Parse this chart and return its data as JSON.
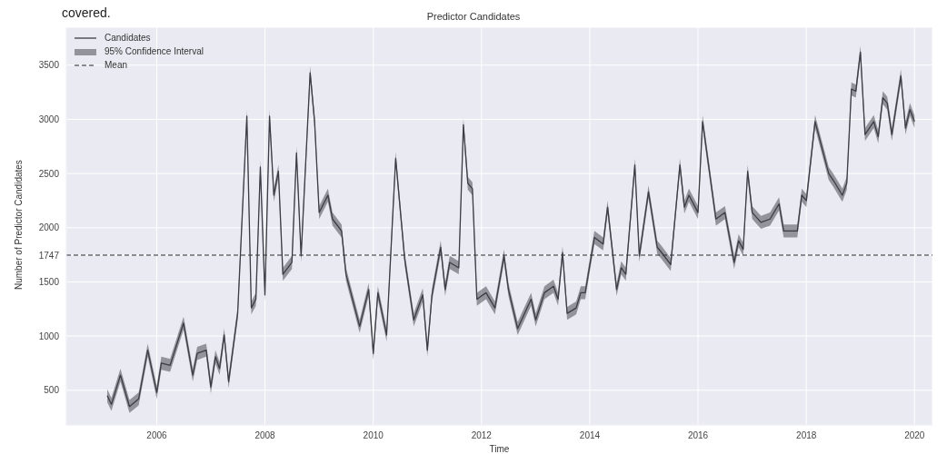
{
  "chart_data": {
    "type": "line",
    "title": "Predictor Candidates",
    "xlabel": "Time",
    "ylabel": "Number of Predictor Candidates",
    "annotations": [
      "covered.",
      "95% Confidence Interval"
    ],
    "x": [
      "2005-02",
      "2005-03",
      "2005-05",
      "2005-07",
      "2005-09",
      "2005-11",
      "2006-01",
      "2006-02",
      "2006-04",
      "2006-07",
      "2006-09",
      "2006-10",
      "2006-12",
      "2007-01",
      "2007-02",
      "2007-03",
      "2007-04",
      "2007-05",
      "2007-07",
      "2007-09",
      "2007-10",
      "2007-11",
      "2007-12",
      "2008-01",
      "2008-02",
      "2008-03",
      "2008-04",
      "2008-05",
      "2008-07",
      "2008-08",
      "2008-09",
      "2008-11",
      "2008-12",
      "2009-01",
      "2009-03",
      "2009-04",
      "2009-06",
      "2009-07",
      "2009-10",
      "2009-12",
      "2010-01",
      "2010-02",
      "2010-04",
      "2010-06",
      "2010-08",
      "2010-10",
      "2010-12",
      "2011-01",
      "2011-02",
      "2011-04",
      "2011-05",
      "2011-06",
      "2011-08",
      "2011-09",
      "2011-10",
      "2011-11",
      "2011-12",
      "2012-02",
      "2012-04",
      "2012-06",
      "2012-07",
      "2012-09",
      "2012-12",
      "2013-01",
      "2013-03",
      "2013-05",
      "2013-06",
      "2013-07",
      "2013-08",
      "2013-10",
      "2013-11",
      "2013-12",
      "2014-02",
      "2014-04",
      "2014-05",
      "2014-07",
      "2014-08",
      "2014-09",
      "2014-11",
      "2014-12",
      "2015-02",
      "2015-04",
      "2015-05",
      "2015-07",
      "2015-09",
      "2015-10",
      "2015-11",
      "2016-01",
      "2016-02",
      "2016-05",
      "2016-07",
      "2016-09",
      "2016-10",
      "2016-11",
      "2016-12",
      "2017-01",
      "2017-03",
      "2017-05",
      "2017-07",
      "2017-08",
      "2017-11",
      "2017-12",
      "2018-01",
      "2018-03",
      "2018-06",
      "2018-07",
      "2018-09",
      "2018-10",
      "2018-11",
      "2018-12",
      "2019-01",
      "2019-02",
      "2019-04",
      "2019-05",
      "2019-06",
      "2019-07",
      "2019-08",
      "2019-10",
      "2019-11",
      "2019-12",
      "2020-01"
    ],
    "series": [
      {
        "name": "Candidates",
        "color": "#3c3c44",
        "values": [
          450,
          370,
          640,
          350,
          420,
          870,
          480,
          750,
          730,
          1120,
          640,
          840,
          870,
          530,
          810,
          700,
          1010,
          580,
          1210,
          3030,
          1260,
          1340,
          2560,
          1380,
          3030,
          2300,
          2520,
          1570,
          1680,
          2690,
          1740,
          3430,
          2980,
          2140,
          2300,
          2080,
          1970,
          1570,
          1090,
          1430,
          840,
          1400,
          1010,
          2640,
          1710,
          1150,
          1380,
          870,
          1380,
          1820,
          1430,
          1680,
          1630,
          2950,
          2410,
          2360,
          1340,
          1400,
          1260,
          1740,
          1430,
          1070,
          1340,
          1150,
          1400,
          1460,
          1340,
          1770,
          1210,
          1260,
          1400,
          1400,
          1910,
          1850,
          2190,
          1430,
          1630,
          1570,
          2580,
          1740,
          2330,
          1820,
          1770,
          1660,
          2580,
          2190,
          2300,
          2140,
          2980,
          2080,
          2140,
          1680,
          1880,
          1800,
          2520,
          2140,
          2050,
          2080,
          2220,
          1970,
          1970,
          2300,
          2250,
          2980,
          2500,
          2440,
          2300,
          2410,
          3280,
          3260,
          3620,
          2860,
          2980,
          2840,
          3200,
          3150,
          2860,
          3400,
          2920,
          3090,
          2980
        ],
        "lower": [
          390,
          310,
          580,
          290,
          360,
          810,
          420,
          690,
          670,
          1060,
          580,
          780,
          810,
          470,
          750,
          640,
          950,
          520,
          1150,
          2970,
          1200,
          1280,
          2500,
          1320,
          2970,
          2240,
          2460,
          1510,
          1620,
          2630,
          1680,
          3370,
          2920,
          2080,
          2240,
          2020,
          1910,
          1510,
          1030,
          1370,
          780,
          1340,
          950,
          2580,
          1650,
          1090,
          1320,
          810,
          1320,
          1760,
          1370,
          1620,
          1570,
          2890,
          2350,
          2300,
          1280,
          1340,
          1200,
          1680,
          1370,
          1010,
          1280,
          1090,
          1340,
          1400,
          1280,
          1710,
          1150,
          1200,
          1340,
          1340,
          1850,
          1790,
          2130,
          1370,
          1570,
          1510,
          2520,
          1680,
          2270,
          1760,
          1710,
          1600,
          2520,
          2130,
          2240,
          2080,
          2920,
          2020,
          2080,
          1620,
          1820,
          1740,
          2460,
          2080,
          1990,
          2020,
          2160,
          1910,
          1910,
          2240,
          2190,
          2920,
          2440,
          2380,
          2240,
          2350,
          3220,
          3200,
          3560,
          2800,
          2920,
          2780,
          3140,
          3090,
          2800,
          3340,
          2860,
          3030,
          2920
        ],
        "upper": [
          510,
          430,
          700,
          410,
          480,
          930,
          540,
          810,
          790,
          1180,
          700,
          900,
          930,
          590,
          870,
          760,
          1070,
          640,
          1270,
          3090,
          1320,
          1400,
          2620,
          1440,
          3090,
          2360,
          2580,
          1630,
          1740,
          2750,
          1800,
          3490,
          3040,
          2200,
          2360,
          2140,
          2030,
          1630,
          1150,
          1490,
          900,
          1460,
          1070,
          2700,
          1770,
          1210,
          1440,
          930,
          1440,
          1880,
          1490,
          1740,
          1690,
          3010,
          2470,
          2420,
          1400,
          1460,
          1320,
          1800,
          1490,
          1130,
          1400,
          1210,
          1460,
          1520,
          1400,
          1830,
          1270,
          1320,
          1460,
          1460,
          1970,
          1910,
          2250,
          1490,
          1690,
          1630,
          2640,
          1800,
          2390,
          1880,
          1830,
          1720,
          2640,
          2250,
          2360,
          2200,
          3040,
          2140,
          2200,
          1740,
          1940,
          1860,
          2580,
          2200,
          2110,
          2140,
          2280,
          2030,
          2030,
          2360,
          2310,
          3040,
          2560,
          2500,
          2360,
          2470,
          3340,
          3320,
          3680,
          2920,
          3040,
          2900,
          3260,
          3210,
          2920,
          3460,
          2980,
          3150,
          3040
        ]
      }
    ],
    "xlim": [
      "2004-05",
      "2020-05"
    ],
    "xticks": [
      "2006",
      "2008",
      "2010",
      "2012",
      "2014",
      "2016",
      "2018",
      "2020"
    ],
    "ylim": [
      180,
      3850
    ],
    "yticks": [
      500,
      1000,
      1500,
      1747,
      2000,
      2500,
      3000,
      3500
    ],
    "ref_lines": [
      {
        "axis": "y",
        "value": 1747,
        "label": "Mean",
        "color": "#22222a",
        "line_style": "dashed"
      }
    ],
    "grid": true,
    "legend": "top left",
    "marker": "none",
    "line_style": "solid"
  }
}
